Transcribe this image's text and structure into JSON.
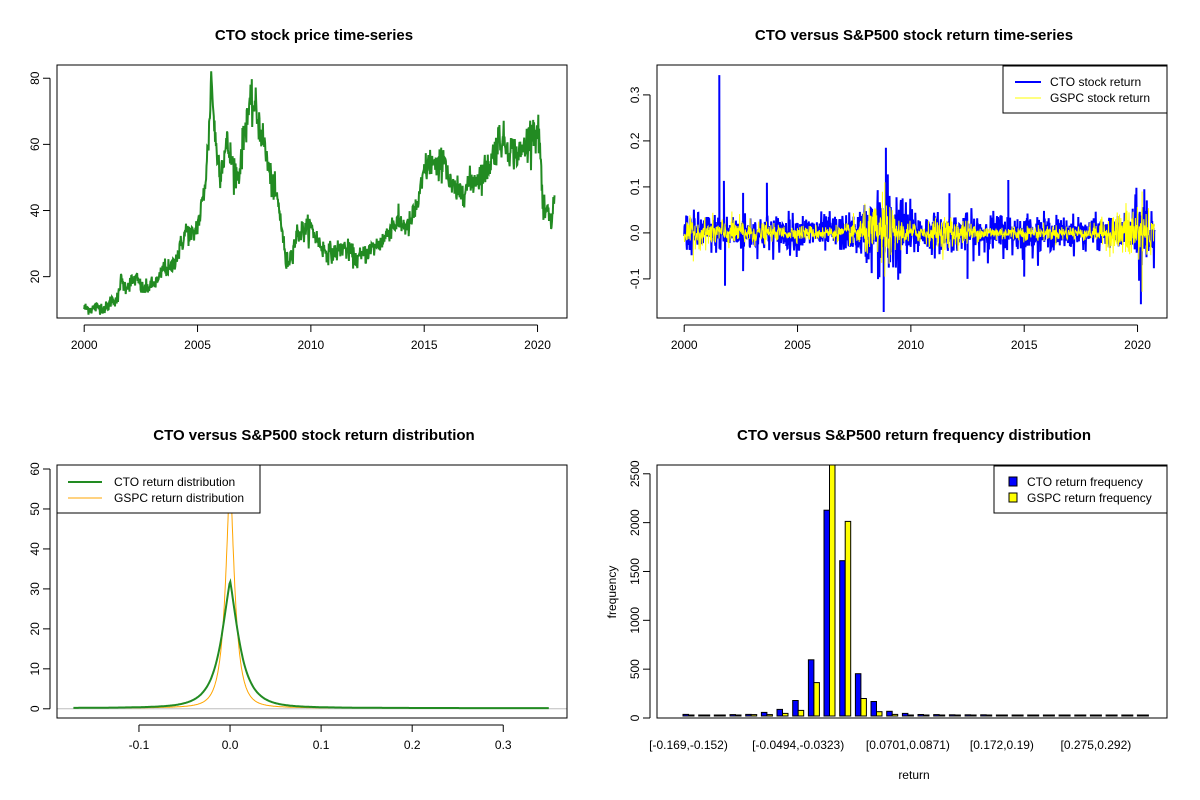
{
  "chart_data": [
    {
      "id": "price",
      "type": "line",
      "title": "CTO stock price time-series",
      "xlabel": "",
      "ylabel": "",
      "xlim": [
        1998.8,
        2021.3
      ],
      "ylim": [
        7.5,
        84
      ],
      "xticks": [
        2000,
        2005,
        2010,
        2015,
        2020
      ],
      "xtick_labels": [
        "2000",
        "2005",
        "2010",
        "2015",
        "2020"
      ],
      "yticks": [
        20,
        40,
        60,
        80
      ],
      "ytick_labels": [
        "20",
        "40",
        "60",
        "80"
      ],
      "grid": false,
      "series": [
        {
          "name": "CTO price",
          "color": "#228B22",
          "x": [
            2000.0,
            2000.3,
            2000.6,
            2001.0,
            2001.2,
            2001.5,
            2001.6,
            2001.8,
            2002.0,
            2002.3,
            2002.5,
            2002.6,
            2003.0,
            2003.3,
            2003.5,
            2003.8,
            2004.2,
            2004.5,
            2004.8,
            2005.0,
            2005.1,
            2005.3,
            2005.5,
            2005.6,
            2005.8,
            2006.0,
            2006.3,
            2006.5,
            2006.8,
            2007.0,
            2007.2,
            2007.5,
            2007.8,
            2008.0,
            2008.2,
            2008.5,
            2008.7,
            2008.9,
            2009.1,
            2009.4,
            2009.7,
            2010.0,
            2010.3,
            2010.6,
            2011.0,
            2011.4,
            2011.8,
            2012.0,
            2012.4,
            2012.8,
            2013.2,
            2013.6,
            2014.0,
            2014.3,
            2014.6,
            2014.8,
            2015.0,
            2015.3,
            2015.6,
            2015.9,
            2016.1,
            2016.5,
            2017.0,
            2017.5,
            2017.8,
            2018.0,
            2018.3,
            2018.6,
            2018.9,
            2019.2,
            2019.5,
            2019.8,
            2020.0,
            2020.1,
            2020.25,
            2020.4,
            2020.6,
            2020.75
          ],
          "y": [
            10.5,
            10.2,
            10.8,
            10.5,
            13,
            13.2,
            19,
            17,
            18,
            19.5,
            17,
            16,
            17.5,
            19,
            23,
            22,
            28,
            34,
            32,
            36,
            38,
            46,
            62,
            81,
            60,
            52,
            60,
            55,
            50,
            60,
            70,
            72,
            64,
            58,
            50,
            44,
            36,
            24,
            26,
            33,
            34,
            35,
            31,
            28,
            27,
            29,
            27,
            25,
            27,
            29,
            31,
            36,
            36,
            35,
            40,
            44,
            52,
            55,
            52,
            57,
            48,
            45,
            48,
            51,
            53,
            56,
            62,
            60,
            58,
            57,
            60,
            65,
            63,
            61,
            38,
            40,
            36,
            44
          ]
        }
      ]
    },
    {
      "id": "returns",
      "type": "line",
      "title": "CTO versus S&P500 stock return time-series",
      "xlabel": "",
      "ylabel": "",
      "xlim": [
        1998.8,
        2021.3
      ],
      "ylim": [
        -0.185,
        0.365
      ],
      "xticks": [
        2000,
        2005,
        2010,
        2015,
        2020
      ],
      "xtick_labels": [
        "2000",
        "2005",
        "2010",
        "2015",
        "2020"
      ],
      "yticks": [
        -0.1,
        0.0,
        0.1,
        0.2,
        0.3
      ],
      "ytick_labels": [
        "-0.1",
        "0.0",
        "0.1",
        "0.2",
        "0.3"
      ],
      "grid": false,
      "legend": {
        "position": "top-right"
      },
      "series": [
        {
          "name": "CTO stock return",
          "color": "#0000FF",
          "volatility_profile": {
            "x": [
              2000,
              2002,
              2005,
              2007.5,
              2008.7,
              2009.0,
              2009.6,
              2010.5,
              2012,
              2014.5,
              2016,
              2019.5,
              2020.2,
              2020.75
            ],
            "sd": [
              0.022,
              0.02,
              0.02,
              0.02,
              0.05,
              0.06,
              0.04,
              0.022,
              0.02,
              0.022,
              0.018,
              0.016,
              0.05,
              0.03
            ]
          },
          "spikes": [
            [
              2001.55,
              0.343
            ],
            [
              2001.75,
              0.113
            ],
            [
              2001.8,
              -0.115
            ],
            [
              2002.6,
              0.087
            ],
            [
              2002.6,
              -0.083
            ],
            [
              2003.65,
              0.109
            ],
            [
              2008.9,
              0.185
            ],
            [
              2008.8,
              -0.172
            ],
            [
              2011.7,
              0.086
            ],
            [
              2012.5,
              -0.1
            ],
            [
              2014.3,
              0.115
            ],
            [
              2015.0,
              -0.095
            ],
            [
              2020.15,
              -0.155
            ],
            [
              2020.3,
              0.095
            ]
          ]
        },
        {
          "name": "GSPC stock return",
          "color": "#FFFF00",
          "volatility_profile": {
            "x": [
              2000,
              2002.5,
              2004,
              2007,
              2008.8,
              2009.5,
              2010.5,
              2011.7,
              2013,
              2018,
              2020.2,
              2020.75
            ],
            "sd": [
              0.014,
              0.016,
              0.008,
              0.008,
              0.035,
              0.015,
              0.01,
              0.02,
              0.008,
              0.008,
              0.04,
              0.012
            ]
          },
          "spikes": [
            [
              2000.4,
              -0.062
            ],
            [
              2008.85,
              0.11
            ],
            [
              2008.85,
              -0.095
            ],
            [
              2020.2,
              -0.128
            ],
            [
              2020.2,
              0.09
            ]
          ]
        }
      ]
    },
    {
      "id": "density",
      "type": "line",
      "title": "CTO versus S&P500 stock return distribution",
      "xlabel": "",
      "ylabel": "",
      "xlim": [
        -0.19,
        0.37
      ],
      "ylim": [
        -2.3,
        61
      ],
      "xticks": [
        -0.1,
        0.0,
        0.1,
        0.2,
        0.3
      ],
      "xtick_labels": [
        "-0.1",
        "0.0",
        "0.1",
        "0.2",
        "0.3"
      ],
      "yticks": [
        0,
        10,
        20,
        30,
        40,
        50,
        60
      ],
      "ytick_labels": [
        "0",
        "10",
        "20",
        "30",
        "40",
        "50",
        "60"
      ],
      "grid": false,
      "legend": {
        "position": "top-left"
      },
      "series": [
        {
          "name": "CTO return distribution",
          "color": "#228B22",
          "range": [
            -0.172,
            0.35
          ],
          "peak": 32,
          "scale": 0.0125
        },
        {
          "name": "GSPC return distribution",
          "color": "#FFA500",
          "range": [
            -0.128,
            0.11
          ],
          "peak": 60,
          "scale": 0.0062
        }
      ],
      "zero_line_color": "#BEBEBE"
    },
    {
      "id": "histogram",
      "type": "bar",
      "title": "CTO versus S&P500 return frequency distribution",
      "xlabel": "return",
      "ylabel": "frequency",
      "ylim": [
        0,
        2590
      ],
      "yticks": [
        0,
        500,
        1000,
        1500,
        2000,
        2500
      ],
      "ytick_labels": [
        "0",
        "500",
        "1000",
        "1500",
        "2000",
        "2500"
      ],
      "xtick_bins": [
        0,
        7,
        14,
        20,
        26
      ],
      "xtick_labels": [
        "[-0.169,-0.152)",
        "[-0.0494,-0.0323)",
        "[0.0701,0.0871)",
        "[0.172,0.19)",
        "[0.275,0.292)"
      ],
      "grid": false,
      "legend": {
        "position": "top-right"
      },
      "series": [
        {
          "name": "CTO return frequency",
          "color": "#0000FF",
          "values": [
            17,
            4,
            4,
            14,
            17,
            37,
            68,
            160,
            580,
            2124,
            1602,
            436,
            150,
            48,
            27,
            15,
            14,
            12,
            12,
            12,
            4,
            3,
            3,
            3,
            3,
            3,
            3,
            3,
            3,
            3
          ]
        },
        {
          "name": "GSPC return frequency",
          "color": "#FFFF00",
          "values": [
            3,
            3,
            3,
            2,
            14,
            14,
            27,
            58,
            345,
            2700,
            2008,
            181,
            44,
            17,
            7,
            3,
            3,
            3,
            3,
            3,
            3,
            3,
            3,
            3,
            3,
            3,
            3,
            3,
            3,
            3
          ]
        }
      ]
    }
  ]
}
